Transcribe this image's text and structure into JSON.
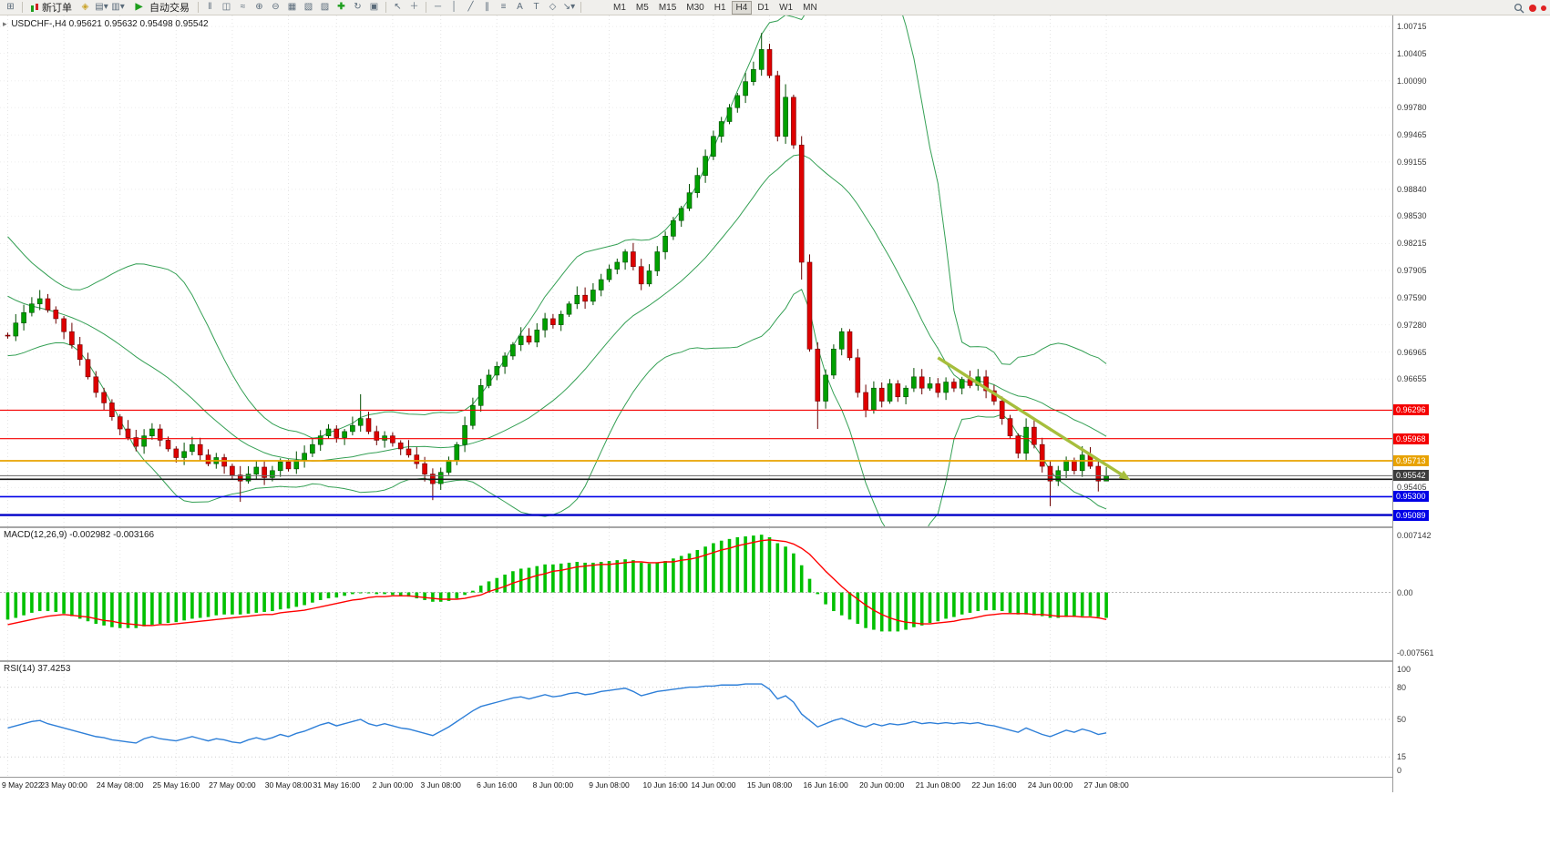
{
  "toolbar": {
    "new_order_label": "新订单",
    "auto_trading_label": "自动交易",
    "timeframes": [
      "M1",
      "M5",
      "M15",
      "M30",
      "H1",
      "H4",
      "D1",
      "W1",
      "MN"
    ],
    "active_timeframe": "H4",
    "notification_color": "#e02020"
  },
  "chart": {
    "marker": "▸",
    "symbol_text": "USDCHF-,H4",
    "ohlc_text": "0.95621 0.95632 0.95498 0.95542"
  },
  "price_axis": {
    "plain_labels": [
      "1.00715",
      "1.00405",
      "1.00090",
      "0.99780",
      "0.99465",
      "0.99155",
      "0.98840",
      "0.98530",
      "0.98215",
      "0.97905",
      "0.97590",
      "0.97280",
      "0.96965",
      "0.96655",
      "0.95405"
    ],
    "badges": [
      {
        "text": "0.96296",
        "color": "#f40000"
      },
      {
        "text": "0.95968",
        "color": "#f40000"
      },
      {
        "text": "0.95713",
        "color": "#e8a200"
      },
      {
        "text": "0.95542",
        "color": "#3c3c3c"
      },
      {
        "text": "0.95300",
        "color": "#0000e6"
      },
      {
        "text": "0.95089",
        "color": "#0000e6"
      }
    ]
  },
  "macd": {
    "label": "MACD(12,26,9) -0.002982 -0.003166",
    "axis_labels": [
      "0.007142",
      "0.00",
      "-0.007561"
    ]
  },
  "rsi": {
    "label": "RSI(14) 37.4253",
    "axis_labels": [
      "100",
      "80",
      "50",
      "15",
      "0"
    ],
    "levels": [
      80,
      50,
      15
    ]
  },
  "time_axis": {
    "labels": [
      "9 May 2022",
      "23 May 00:00",
      "24 May 08:00",
      "25 May 16:00",
      "27 May 00:00",
      "30 May 08:00",
      "31 May 16:00",
      "2 Jun 00:00",
      "3 Jun 08:00",
      "6 Jun 16:00",
      "8 Jun 00:00",
      "9 Jun 08:00",
      "10 Jun 16:00",
      "14 Jun 00:00",
      "15 Jun 08:00",
      "16 Jun 16:00",
      "20 Jun 00:00",
      "21 Jun 08:00",
      "22 Jun 16:00",
      "24 Jun 00:00",
      "27 Jun 08:00"
    ],
    "bars": [
      0,
      7,
      14,
      21,
      28,
      35,
      41,
      48,
      54,
      61,
      68,
      75,
      82,
      88,
      95,
      102,
      109,
      116,
      123,
      130,
      137
    ]
  },
  "chart_data": {
    "type": "candlestick",
    "symbol": "USDCHF-",
    "timeframe": "H4",
    "current": {
      "open": 0.95621,
      "high": 0.95632,
      "low": 0.95498,
      "close": 0.95542
    },
    "scale": {
      "top": 1.008,
      "bottom": 0.95
    },
    "pre_closes": [
      0.9832,
      0.9825,
      0.9818,
      0.981,
      0.98,
      0.9792,
      0.9785,
      0.9778,
      0.9772,
      0.9765,
      0.9758,
      0.9752,
      0.9748,
      0.9742,
      0.9738,
      0.9732,
      0.9728,
      0.9724,
      0.972,
      0.9716
    ],
    "closes": [
      0.9715,
      0.973,
      0.9742,
      0.9752,
      0.9758,
      0.9745,
      0.9735,
      0.972,
      0.9705,
      0.9688,
      0.9668,
      0.965,
      0.9638,
      0.9622,
      0.9608,
      0.9598,
      0.9588,
      0.96,
      0.9608,
      0.9595,
      0.9585,
      0.9575,
      0.9582,
      0.959,
      0.9578,
      0.9568,
      0.9575,
      0.9565,
      0.9555,
      0.9548,
      0.9556,
      0.9564,
      0.9552,
      0.956,
      0.957,
      0.9562,
      0.9572,
      0.958,
      0.959,
      0.96,
      0.9608,
      0.9598,
      0.9605,
      0.9612,
      0.962,
      0.9605,
      0.9595,
      0.96,
      0.9592,
      0.9585,
      0.9578,
      0.9568,
      0.9556,
      0.9545,
      0.9558,
      0.9572,
      0.959,
      0.9612,
      0.9635,
      0.9658,
      0.967,
      0.968,
      0.9692,
      0.9705,
      0.9715,
      0.9708,
      0.9722,
      0.9735,
      0.9728,
      0.974,
      0.9752,
      0.9762,
      0.9755,
      0.9768,
      0.978,
      0.9792,
      0.98,
      0.9812,
      0.9795,
      0.9775,
      0.979,
      0.9812,
      0.983,
      0.9848,
      0.9862,
      0.988,
      0.99,
      0.9922,
      0.9945,
      0.9962,
      0.9978,
      0.9992,
      1.0008,
      1.0022,
      1.0045,
      1.0015,
      0.9945,
      0.999,
      0.9935,
      0.98,
      0.97,
      0.964,
      0.967,
      0.97,
      0.972,
      0.969,
      0.965,
      0.963,
      0.9655,
      0.964,
      0.966,
      0.9645,
      0.9655,
      0.9668,
      0.9655,
      0.966,
      0.965,
      0.9662,
      0.9655,
      0.9665,
      0.9658,
      0.9668,
      0.9652,
      0.964,
      0.962,
      0.96,
      0.958,
      0.961,
      0.959,
      0.9565,
      0.9548,
      0.956,
      0.9572,
      0.956,
      0.9578,
      0.9565,
      0.9548,
      0.95542
    ],
    "spikes": {
      "4": {
        "h": 0.9768
      },
      "29": {
        "l": 0.9524
      },
      "44": {
        "h": 0.9648
      },
      "53": {
        "l": 0.9526
      },
      "94": {
        "h": 1.0064
      },
      "97": {
        "h": 1.0005
      },
      "99": {
        "l": 0.978
      },
      "101": {
        "l": 0.9608
      },
      "130": {
        "l": 0.9519
      },
      "136": {
        "l": 0.9536
      },
      "137": {
        "l": 0.955,
        "h": 0.9564
      }
    },
    "hlines": [
      {
        "price": 0.96296,
        "color": "#f40000",
        "w": 1.2
      },
      {
        "price": 0.95968,
        "color": "#f40000",
        "w": 1.2
      },
      {
        "price": 0.95713,
        "color": "#e8a200",
        "w": 1.8
      },
      {
        "price": 0.95542,
        "color": "#6a6a6a",
        "w": 1
      },
      {
        "price": 0.955,
        "color": "#181818",
        "w": 1.6
      },
      {
        "price": 0.953,
        "color": "#0000e8",
        "w": 1.6
      },
      {
        "price": 0.95089,
        "color": "#0000c8",
        "w": 2.4
      }
    ],
    "trend_arrow": {
      "b1": 116,
      "p1": 0.969,
      "b2": 140,
      "p2": 0.9549,
      "color": "#a6be3c"
    },
    "macd_scale": {
      "top": 0.007142,
      "bottom": -0.007561
    },
    "macd": [
      -0.0032,
      -0.003,
      -0.0027,
      -0.0024,
      -0.0022,
      -0.0022,
      -0.0023,
      -0.0025,
      -0.0028,
      -0.0031,
      -0.0034,
      -0.0037,
      -0.0039,
      -0.0041,
      -0.0042,
      -0.0042,
      -0.0042,
      -0.004,
      -0.0038,
      -0.0037,
      -0.0036,
      -0.0035,
      -0.0033,
      -0.0031,
      -0.003,
      -0.0029,
      -0.0027,
      -0.0026,
      -0.0026,
      -0.0026,
      -0.0025,
      -0.0024,
      -0.0023,
      -0.0022,
      -0.002,
      -0.0019,
      -0.0017,
      -0.0015,
      -0.0012,
      -0.0009,
      -0.0007,
      -0.0006,
      -0.0004,
      -0.0002,
      -0.0001,
      -0.0001,
      -0.0002,
      -0.0002,
      -0.0003,
      -0.0004,
      -0.0005,
      -0.0007,
      -0.0009,
      -0.0011,
      -0.0011,
      -0.001,
      -0.0007,
      -0.0003,
      0.0002,
      0.0008,
      0.0013,
      0.0017,
      0.0021,
      0.0025,
      0.0028,
      0.0029,
      0.0031,
      0.0033,
      0.0033,
      0.0034,
      0.0035,
      0.0036,
      0.0035,
      0.0035,
      0.0036,
      0.0037,
      0.0038,
      0.0039,
      0.0038,
      0.0035,
      0.0034,
      0.0035,
      0.0037,
      0.004,
      0.0043,
      0.0046,
      0.005,
      0.0054,
      0.0058,
      0.0061,
      0.0063,
      0.0065,
      0.0066,
      0.0067,
      0.0068,
      0.0065,
      0.0058,
      0.0054,
      0.0046,
      0.0032,
      0.0016,
      -0.0002,
      -0.0014,
      -0.0022,
      -0.0027,
      -0.0032,
      -0.0037,
      -0.0042,
      -0.0044,
      -0.0046,
      -0.0046,
      -0.0046,
      -0.0044,
      -0.0041,
      -0.0039,
      -0.0036,
      -0.0034,
      -0.0031,
      -0.0029,
      -0.0026,
      -0.0024,
      -0.0022,
      -0.0021,
      -0.0021,
      -0.0022,
      -0.0024,
      -0.0026,
      -0.0026,
      -0.0027,
      -0.0028,
      -0.003,
      -0.003,
      -0.0029,
      -0.0029,
      -0.0028,
      -0.0028,
      -0.0029,
      -0.003
    ],
    "macd_signal": [
      -0.0038,
      -0.0036,
      -0.0034,
      -0.0032,
      -0.003,
      -0.0028,
      -0.0027,
      -0.0026,
      -0.0027,
      -0.0028,
      -0.0029,
      -0.0031,
      -0.0033,
      -0.0034,
      -0.0036,
      -0.0037,
      -0.0038,
      -0.0039,
      -0.0039,
      -0.0038,
      -0.0038,
      -0.0037,
      -0.0036,
      -0.0035,
      -0.0034,
      -0.0033,
      -0.0032,
      -0.0031,
      -0.003,
      -0.0029,
      -0.0028,
      -0.0027,
      -0.0026,
      -0.0026,
      -0.0024,
      -0.0023,
      -0.0022,
      -0.0021,
      -0.0019,
      -0.0017,
      -0.0015,
      -0.0013,
      -0.0011,
      -0.0009,
      -0.0008,
      -0.0006,
      -0.0005,
      -0.0005,
      -0.0004,
      -0.0004,
      -0.0004,
      -0.0005,
      -0.0006,
      -0.0007,
      -0.0008,
      -0.0008,
      -0.0008,
      -0.0007,
      -0.0005,
      -0.0003,
      0.0001,
      0.0004,
      0.0007,
      0.0011,
      0.0014,
      0.0017,
      0.002,
      0.0022,
      0.0025,
      0.0026,
      0.0028,
      0.003,
      0.0031,
      0.0032,
      0.0033,
      0.0033,
      0.0034,
      0.0035,
      0.0036,
      0.0036,
      0.0035,
      0.0035,
      0.0036,
      0.0036,
      0.0038,
      0.0039,
      0.0041,
      0.0044,
      0.0047,
      0.005,
      0.0052,
      0.0055,
      0.0057,
      0.0059,
      0.0061,
      0.0062,
      0.0061,
      0.006,
      0.0057,
      0.0052,
      0.0045,
      0.0035,
      0.0025,
      0.0016,
      0.0007,
      -0.0001,
      -0.0008,
      -0.0015,
      -0.0021,
      -0.0026,
      -0.003,
      -0.0033,
      -0.0035,
      -0.0036,
      -0.0037,
      -0.0037,
      -0.0036,
      -0.0035,
      -0.0034,
      -0.0032,
      -0.0031,
      -0.0029,
      -0.0027,
      -0.0026,
      -0.0025,
      -0.0025,
      -0.0025,
      -0.0025,
      -0.0026,
      -0.0026,
      -0.0027,
      -0.0028,
      -0.0028,
      -0.0028,
      -0.0029,
      -0.0029,
      -0.003,
      -0.0032
    ],
    "rsi_values": [
      42,
      44,
      46,
      48,
      49,
      46,
      44,
      42,
      40,
      38,
      36,
      34,
      33,
      31,
      30,
      29,
      28,
      32,
      34,
      32,
      31,
      30,
      32,
      34,
      32,
      30,
      32,
      31,
      29,
      28,
      31,
      33,
      31,
      33,
      36,
      34,
      37,
      39,
      42,
      45,
      47,
      44,
      46,
      48,
      50,
      46,
      44,
      46,
      44,
      42,
      41,
      39,
      37,
      35,
      39,
      43,
      48,
      53,
      58,
      62,
      64,
      66,
      68,
      70,
      71,
      69,
      71,
      73,
      71,
      72,
      74,
      75,
      73,
      74,
      76,
      77,
      78,
      79,
      76,
      72,
      74,
      76,
      77,
      78,
      79,
      80,
      80,
      81,
      81,
      82,
      82,
      82,
      83,
      83,
      83,
      78,
      69,
      72,
      66,
      55,
      49,
      43,
      46,
      49,
      51,
      48,
      45,
      43,
      46,
      44,
      46,
      45,
      46,
      48,
      46,
      47,
      46,
      47,
      46,
      47,
      46,
      47,
      45,
      44,
      42,
      40,
      38,
      42,
      39,
      36,
      34,
      37,
      40,
      38,
      41,
      39,
      36,
      37.4
    ],
    "colors": {
      "bull": "#00a000",
      "bear": "#de0000",
      "bull_border": "#004d00",
      "bear_border": "#6b0000",
      "bb": "#35a055",
      "macd_hist": "#00c000",
      "macd_signal": "#ff0000",
      "rsi_line": "#2e7fd8"
    }
  }
}
